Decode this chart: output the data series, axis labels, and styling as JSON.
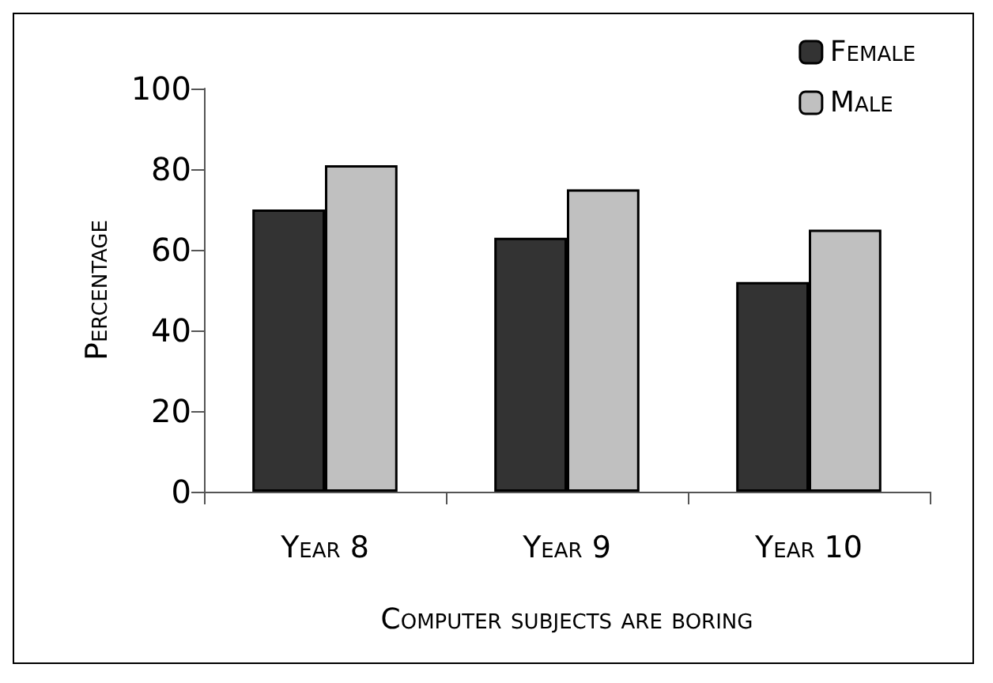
{
  "chart_data": {
    "type": "bar",
    "xlabel": "Computer subjects are boring",
    "ylabel": "Percentage",
    "categories": [
      "Year 8",
      "Year 9",
      "Year 10"
    ],
    "series": [
      {
        "name": "Female",
        "color": "#333333",
        "values": [
          70,
          63,
          52
        ]
      },
      {
        "name": "Male",
        "color": "#c0c0c0",
        "values": [
          81,
          75,
          65
        ]
      }
    ],
    "ylim": [
      0,
      100
    ],
    "yticks": [
      0,
      20,
      40,
      60,
      80,
      100
    ],
    "grid": false,
    "legend": "top right"
  }
}
